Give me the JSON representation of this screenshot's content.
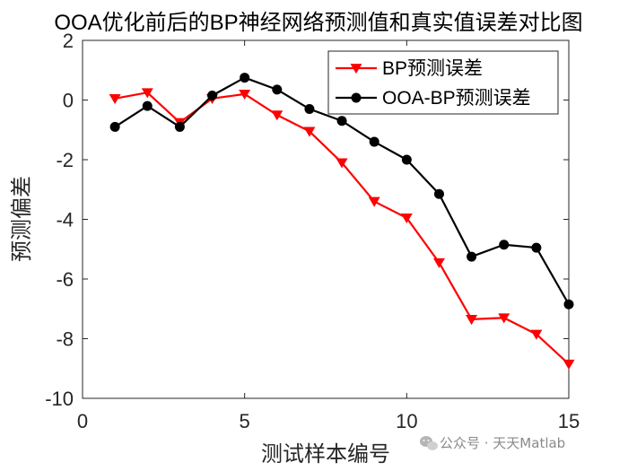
{
  "chart_data": {
    "type": "line",
    "title": "OOA优化前后的BP神经网络预测值和真实值误差对比图",
    "xlabel": "测试样本编号",
    "ylabel": "预测偏差",
    "xlim": [
      0,
      15
    ],
    "ylim": [
      -10,
      2
    ],
    "xticks": [
      0,
      5,
      10,
      15
    ],
    "yticks": [
      -10,
      -8,
      -6,
      -4,
      -2,
      0,
      2
    ],
    "grid": false,
    "legend_position": "top-right",
    "x": [
      1,
      2,
      3,
      4,
      5,
      6,
      7,
      8,
      9,
      10,
      11,
      12,
      13,
      14,
      15
    ],
    "series": [
      {
        "name": "BP预测误差",
        "color": "#ff0000",
        "marker": "triangle-down",
        "values": [
          0.05,
          0.25,
          -0.75,
          0.05,
          0.2,
          -0.5,
          -1.05,
          -2.1,
          -3.4,
          -3.95,
          -5.45,
          -7.35,
          -7.3,
          -7.85,
          -8.85
        ]
      },
      {
        "name": "OOA-BP预测误差",
        "color": "#000000",
        "marker": "circle",
        "values": [
          -0.9,
          -0.2,
          -0.9,
          0.15,
          0.75,
          0.35,
          -0.3,
          -0.7,
          -1.4,
          -2.0,
          -3.15,
          -5.25,
          -4.85,
          -4.95,
          -6.85
        ]
      }
    ]
  },
  "watermark": {
    "text": "公众号 · 天天Matlab",
    "icon": "wechat-icon"
  }
}
